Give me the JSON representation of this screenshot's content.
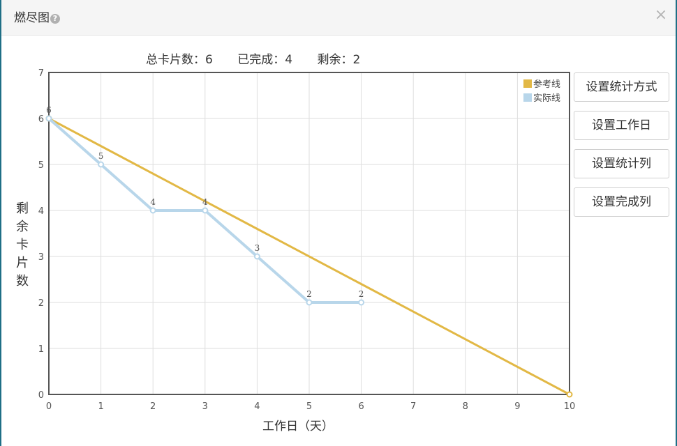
{
  "dialog": {
    "title": "燃尽图",
    "help_icon": "?",
    "close_icon": "×"
  },
  "stats": {
    "total": "总卡片数：6",
    "done": "已完成：4",
    "remaining": "剩余：2"
  },
  "buttons": {
    "stat_method": "设置统计方式",
    "workday": "设置工作日",
    "stat_column": "设置统计列",
    "done_column": "设置完成列"
  },
  "chart_data": {
    "type": "line",
    "xlabel": "工作日（天）",
    "ylabel": "剩余卡片数",
    "xlim": [
      0,
      10
    ],
    "ylim": [
      0,
      7
    ],
    "x_ticks": [
      "0",
      "1",
      "2",
      "3",
      "4",
      "5",
      "6",
      "7",
      "8",
      "9",
      "10"
    ],
    "y_ticks": [
      "0",
      "1",
      "2",
      "3",
      "4",
      "5",
      "6",
      "7"
    ],
    "grid": true,
    "legend_position": "top-right",
    "series": [
      {
        "name": "参考线",
        "color": "#e2b845",
        "points": [
          [
            0,
            6
          ],
          [
            10,
            0
          ]
        ]
      },
      {
        "name": "实际线",
        "color": "#b8d6ea",
        "points": [
          [
            0,
            6
          ],
          [
            1,
            5
          ],
          [
            2,
            4
          ],
          [
            3,
            4
          ],
          [
            4,
            3
          ],
          [
            5,
            2
          ],
          [
            6,
            2
          ]
        ],
        "labels": [
          "6",
          "5",
          "4",
          "4",
          "3",
          "2",
          "2"
        ]
      }
    ]
  }
}
